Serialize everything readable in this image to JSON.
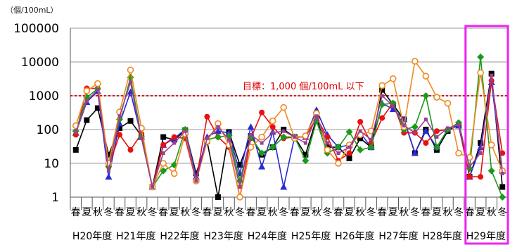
{
  "chart_data": {
    "type": "line",
    "yscale": "log",
    "unit_label": "（個/100mL）",
    "ylim": [
      1,
      100000
    ],
    "yticks": [
      "1",
      "10",
      "100",
      "1000",
      "10000",
      "100000"
    ],
    "grid": true,
    "season_labels": [
      "春",
      "夏",
      "秋",
      "冬",
      "春",
      "夏",
      "秋",
      "冬",
      "春",
      "夏",
      "秋",
      "冬",
      "春",
      "夏",
      "秋",
      "冬",
      "春",
      "夏",
      "秋",
      "冬",
      "春",
      "夏",
      "秋",
      "冬",
      "春",
      "夏",
      "秋",
      "冬",
      "春",
      "夏",
      "秋",
      "冬",
      "春",
      "夏",
      "秋",
      "冬",
      "春",
      "夏",
      "秋",
      "冬"
    ],
    "year_labels": [
      "H20年度",
      "H21年度",
      "H22年度",
      "H23年度",
      "H24年度",
      "H25年度",
      "H26年度",
      "H27年度",
      "H28年度",
      "H29年度"
    ],
    "target": {
      "value": 1000,
      "label": "目標：1,000 個/100mL 以下",
      "color": "#e00000"
    },
    "highlight": {
      "category_label": "H29年度",
      "color": "#ee22ee"
    },
    "series": [
      {
        "marker": "square",
        "color": "#000000",
        "values": [
          25,
          190,
          430,
          18,
          110,
          180,
          65,
          2,
          60,
          50,
          95,
          5,
          45,
          1,
          85,
          9,
          65,
          18,
          30,
          100,
          60,
          18,
          210,
          30,
          30,
          14,
          55,
          30,
          1500,
          550,
          200,
          20,
          100,
          25,
          90,
          140,
          4,
          40,
          4500,
          2
        ]
      },
      {
        "marker": "triangle",
        "color": "#2a2ad8",
        "values": [
          80,
          650,
          1350,
          4,
          150,
          1300,
          60,
          2,
          35,
          55,
          100,
          4,
          60,
          90,
          80,
          5,
          120,
          8,
          85,
          2,
          60,
          60,
          380,
          70,
          30,
          35,
          80,
          30,
          600,
          400,
          200,
          20,
          90,
          30,
          100,
          130,
          4,
          30,
          2500,
          6
        ]
      },
      {
        "marker": "circle",
        "color": "#e81010",
        "values": [
          70,
          1650,
          1650,
          8,
          70,
          25,
          75,
          2,
          35,
          60,
          55,
          3,
          240,
          60,
          30,
          1,
          55,
          320,
          120,
          55,
          60,
          60,
          220,
          60,
          12,
          20,
          170,
          40,
          220,
          600,
          80,
          80,
          40,
          90,
          100,
          150,
          4,
          4,
          2800,
          20
        ]
      },
      {
        "marker": "diamond",
        "color": "#1a9a1a",
        "values": [
          90,
          900,
          1600,
          8,
          200,
          3500,
          60,
          2,
          6,
          9,
          100,
          3,
          50,
          60,
          65,
          3,
          60,
          20,
          30,
          60,
          60,
          12,
          180,
          20,
          30,
          85,
          25,
          30,
          550,
          600,
          100,
          120,
          1000,
          30,
          100,
          160,
          7,
          14000,
          6,
          1
        ]
      },
      {
        "marker": "open-circle",
        "color": "#f08a20",
        "values": [
          130,
          1400,
          2300,
          10,
          330,
          5800,
          110,
          2,
          10,
          5,
          75,
          3,
          45,
          150,
          35,
          1,
          30,
          60,
          180,
          450,
          55,
          65,
          300,
          25,
          10,
          35,
          70,
          90,
          2000,
          3200,
          120,
          10500,
          3800,
          900,
          600,
          20,
          15,
          4800,
          35,
          6
        ]
      },
      {
        "marker": "square-small",
        "color": "#9a4090",
        "values": [
          85,
          700,
          1500,
          6,
          250,
          2500,
          55,
          2,
          20,
          40,
          90,
          3,
          55,
          120,
          50,
          2,
          70,
          40,
          80,
          90,
          60,
          40,
          250,
          40,
          20,
          30,
          90,
          50,
          1000,
          500,
          130,
          80,
          200,
          60,
          110,
          140,
          8,
          20,
          4000,
          5
        ]
      }
    ]
  }
}
